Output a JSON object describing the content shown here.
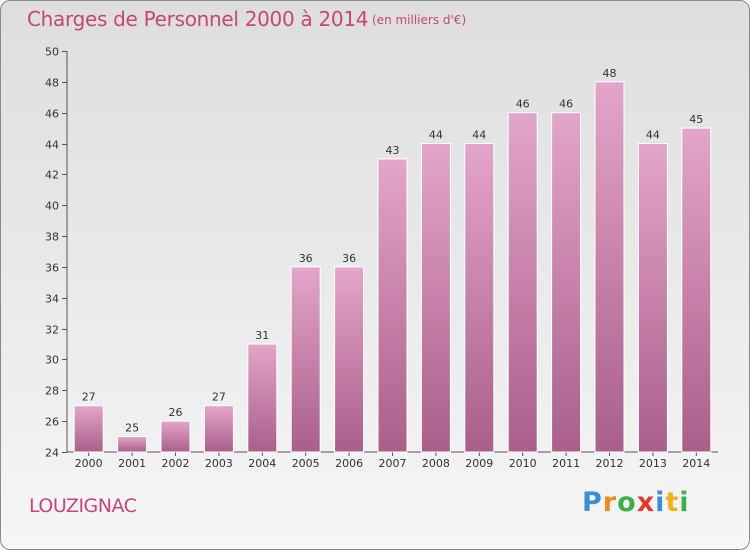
{
  "header": {
    "title": "Charges de Personnel 2000 à 2014",
    "unit": "(en milliers d'€)"
  },
  "footer": {
    "commune": "LOUZIGNAC",
    "logo_letters": [
      {
        "ch": "P",
        "color": "#3a8fd8"
      },
      {
        "ch": "r",
        "color": "#f08a1a"
      },
      {
        "ch": "o",
        "color": "#3db04a"
      },
      {
        "ch": "x",
        "color": "#e03a2a"
      },
      {
        "ch": "i",
        "color": "#3a8fd8"
      },
      {
        "ch": "t",
        "color": "#f0b21a"
      },
      {
        "ch": "i",
        "color": "#3db04a"
      }
    ]
  },
  "colors": {
    "accent": "#c4467a",
    "bar_top": "#e3a5c9",
    "bar_bottom": "#a95f8a"
  },
  "chart_data": {
    "type": "bar",
    "title": "Charges de Personnel 2000 à 2014",
    "subtitle": "(en milliers d'€)",
    "categories": [
      "2000",
      "2001",
      "2002",
      "2003",
      "2004",
      "2005",
      "2006",
      "2007",
      "2008",
      "2009",
      "2010",
      "2011",
      "2012",
      "2013",
      "2014"
    ],
    "values": [
      27,
      25,
      26,
      27,
      31,
      36,
      36,
      43,
      44,
      44,
      46,
      46,
      48,
      44,
      45
    ],
    "ylim": [
      24,
      50
    ],
    "yticks": [
      24,
      26,
      28,
      30,
      32,
      34,
      36,
      38,
      40,
      42,
      44,
      46,
      48,
      50
    ],
    "grid": false,
    "data_labels": true
  }
}
